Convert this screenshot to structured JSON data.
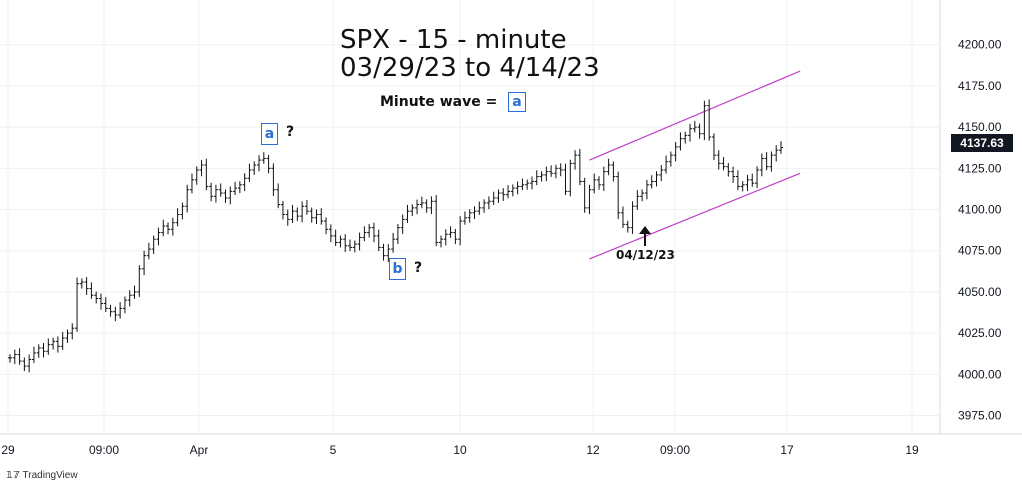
{
  "chart_data": {
    "type": "line",
    "title": "SPX - 15 - minute",
    "subtitle": "03/29/23 to 4/14/23",
    "xlabel": "",
    "ylabel": "",
    "ylim": [
      3965,
      4215
    ],
    "y_ticks": [
      3975,
      4000,
      4025,
      4050,
      4075,
      4100,
      4125,
      4150,
      4175,
      4200
    ],
    "y_tick_labels": [
      "3975.00",
      "4000.00",
      "4025.00",
      "4050.00",
      "4075.00",
      "4100.00",
      "4125.00",
      "4150.00",
      "4175.00",
      "4200.00"
    ],
    "x_tick_labels": [
      "29",
      "09:00",
      "Apr",
      "5",
      "10",
      "12",
      "09:00",
      "17",
      "19"
    ],
    "grid": true,
    "last_price": "4137.63",
    "series": [
      {
        "values": [
          4010,
          4012,
          4008,
          4005,
          4009,
          4013,
          4016,
          4014,
          4018,
          4020,
          4017,
          4022,
          4025,
          4028,
          4055,
          4056,
          4052,
          4048,
          4046,
          4043,
          4040,
          4038,
          4036,
          4040,
          4045,
          4048,
          4050,
          4064,
          4072,
          4076,
          4082,
          4086,
          4090,
          4088,
          4092,
          4097,
          4102,
          4112,
          4118,
          4124,
          4127,
          4114,
          4108,
          4112,
          4110,
          4107,
          4111,
          4113,
          4115,
          4119,
          4124,
          4127,
          4130,
          4131,
          4125,
          4112,
          4103,
          4097,
          4094,
          4099,
          4096,
          4102,
          4099,
          4095,
          4097,
          4093,
          4088,
          4084,
          4080,
          4082,
          4078,
          4077,
          4079,
          4083,
          4086,
          4089,
          4084,
          4077,
          4072,
          4076,
          4082,
          4089,
          4094,
          4099,
          4101,
          4103,
          4104,
          4101,
          4105,
          4080,
          4082,
          4085,
          4086,
          4082,
          4093,
          4095,
          4098,
          4099,
          4101,
          4104,
          4105,
          4107,
          4110,
          4109,
          4111,
          4113,
          4114,
          4115,
          4116,
          4117,
          4120,
          4121,
          4123,
          4122,
          4125,
          4124,
          4111,
          4128,
          4133,
          4117,
          4101,
          4112,
          4118,
          4115,
          4123,
          4127,
          4120,
          4098,
          4091,
          4089,
          4102,
          4108,
          4110,
          4115,
          4117,
          4121,
          4124,
          4129,
          4133,
          4138,
          4143,
          4145,
          4149,
          4150,
          4146,
          4163,
          4144,
          4133,
          4128,
          4126,
          4123,
          4120,
          4114,
          4115,
          4118,
          4116,
          4124,
          4131,
          4126,
          4133,
          4136,
          4137.63
        ]
      }
    ],
    "annotations": {
      "wave_note": "Minute wave =",
      "wave_box": "a",
      "label_a": "a",
      "label_a_q": "?",
      "label_b": "b",
      "label_b_q": "?",
      "date_note": "04/12/23"
    },
    "channel": {
      "upper": [
        [
          121,
          4130
        ],
        [
          165,
          4184
        ]
      ],
      "lower": [
        [
          121,
          4070
        ],
        [
          165,
          4122
        ]
      ],
      "color": "#c040c8"
    }
  },
  "brand": "TradingView"
}
